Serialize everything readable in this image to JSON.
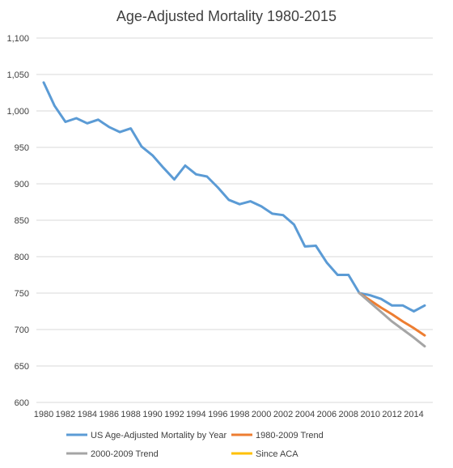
{
  "chart_data": {
    "type": "line",
    "title": "Age-Adjusted Mortality 1980-2015",
    "xlabel": "",
    "ylabel": "",
    "ylim": [
      600,
      1100
    ],
    "xlim": [
      1980,
      2015
    ],
    "y_ticks": [
      600,
      650,
      700,
      750,
      800,
      850,
      900,
      950,
      1000,
      1050,
      1100
    ],
    "y_tick_labels": [
      "600",
      "650",
      "700",
      "750",
      "800",
      "850",
      "900",
      "950",
      "1,000",
      "1,050",
      "1,100"
    ],
    "x_tick_labels": [
      "1980",
      "1982",
      "1984",
      "1986",
      "1988",
      "1990",
      "1992",
      "1994",
      "1996",
      "1998",
      "2000",
      "2002",
      "2004",
      "2006",
      "2008",
      "2010",
      "2012",
      "2014"
    ],
    "grid": true,
    "legend_position": "bottom",
    "series": [
      {
        "name": "US Age-Adjusted Mortality by Year",
        "color": "#5B9BD5",
        "x": [
          1980,
          1981,
          1982,
          1983,
          1984,
          1985,
          1986,
          1987,
          1988,
          1989,
          1990,
          1991,
          1992,
          1993,
          1994,
          1995,
          1996,
          1997,
          1998,
          1999,
          2000,
          2001,
          2002,
          2003,
          2004,
          2005,
          2006,
          2007,
          2008,
          2009,
          2010,
          2011,
          2012,
          2013,
          2014,
          2015
        ],
        "values": [
          1039,
          1007,
          985,
          990,
          983,
          988,
          978,
          971,
          976,
          951,
          939,
          922,
          906,
          925,
          913,
          910,
          895,
          878,
          872,
          876,
          869,
          859,
          857,
          844,
          814,
          815,
          792,
          775,
          775,
          750,
          747,
          742,
          733,
          733,
          725,
          733
        ]
      },
      {
        "name": "1980-2009 Trend",
        "color": "#ED7D31",
        "x": [
          2009,
          2010,
          2011,
          2012,
          2013,
          2014,
          2015
        ],
        "values": [
          750,
          740,
          730,
          721,
          711,
          702,
          692
        ]
      },
      {
        "name": "2000-2009 Trend",
        "color": "#A5A5A5",
        "x": [
          2009,
          2010,
          2011,
          2012,
          2013,
          2014,
          2015
        ],
        "values": [
          750,
          737,
          724,
          711,
          700,
          689,
          677
        ]
      },
      {
        "name": "Since ACA",
        "color": "#FFC000",
        "x": [],
        "values": []
      }
    ]
  }
}
